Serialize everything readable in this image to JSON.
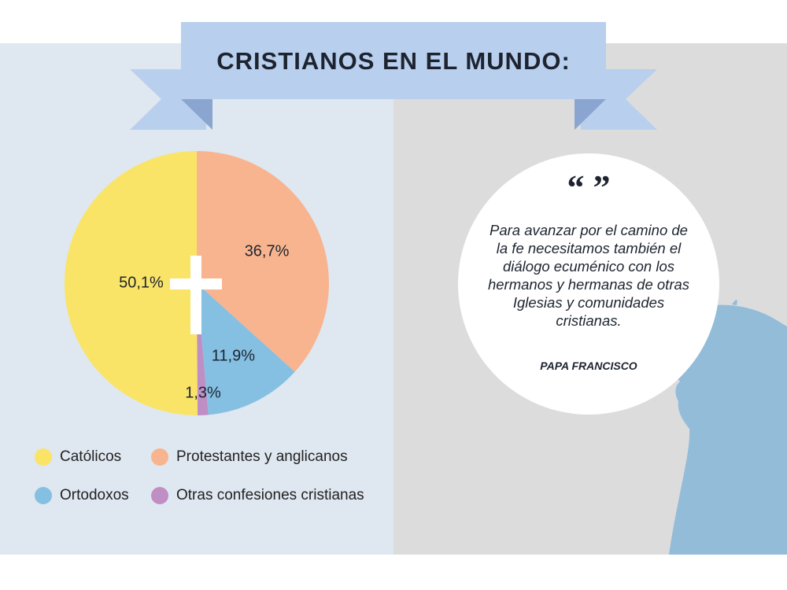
{
  "title": "CRISTIANOS EN EL MUNDO:",
  "colors": {
    "banner": "#b9cfee",
    "banner_shadow": "#8aa6d0",
    "catolicos": "#fae467",
    "protestantes": "#f8b48e",
    "ortodoxos": "#85c0e3",
    "otras": "#bf8ec4",
    "silhouette": "#93bcd9"
  },
  "chart_data": {
    "type": "pie",
    "slices": [
      {
        "label": "Católicos",
        "value": 50.1,
        "display": "50,1%",
        "color": "#fae467"
      },
      {
        "label": "Protestantes y anglicanos",
        "value": 36.7,
        "display": "36,7%",
        "color": "#f8b48e"
      },
      {
        "label": "Ortodoxos",
        "value": 11.9,
        "display": "11,9%",
        "color": "#85c0e3"
      },
      {
        "label": "Otras confesiones cristianas",
        "value": 1.3,
        "display": "1,3%",
        "color": "#bf8ec4"
      }
    ],
    "legend_position": "bottom"
  },
  "legend": [
    {
      "label": "Católicos",
      "color": "#fae467"
    },
    {
      "label": "Protestantes y anglicanos",
      "color": "#f8b48e"
    },
    {
      "label": "Ortodoxos",
      "color": "#85c0e3"
    },
    {
      "label": "Otras confesiones cristianas",
      "color": "#bf8ec4"
    }
  ],
  "quote": {
    "marks": "“ ”",
    "lines": [
      "Para avanzar por el camino de",
      "la fe necesitamos también el",
      "diálogo ecuménico con los",
      "hermanos y hermanas de otras",
      "Iglesias y comunidades",
      "cristianas."
    ],
    "author": "PAPA FRANCISCO"
  }
}
